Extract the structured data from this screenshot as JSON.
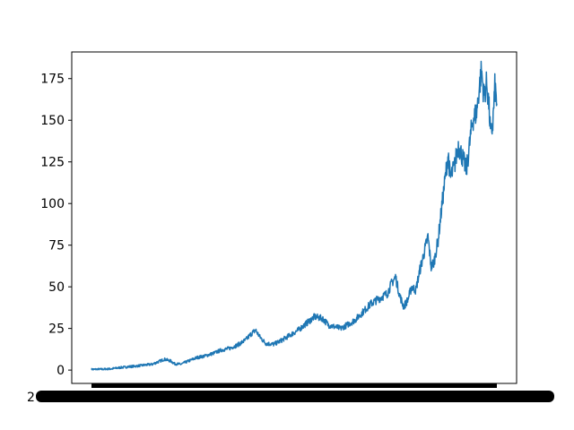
{
  "chart_data": {
    "type": "line",
    "title": "",
    "xlabel": "",
    "ylabel": "",
    "ylim": [
      -8,
      191
    ],
    "yticks": [
      0,
      25,
      50,
      75,
      100,
      125,
      150,
      175
    ],
    "ytick_labels": [
      "0",
      "25",
      "50",
      "75",
      "100",
      "125",
      "150",
      "175"
    ],
    "x_tick_labels": "overlapping, illegible (one label per data point)",
    "grid": false,
    "legend": "none",
    "series": [
      {
        "color": "#1f77b4",
        "x_index_range": [
          0,
          100
        ],
        "points": [
          [
            0,
            0.4
          ],
          [
            3,
            0.5
          ],
          [
            5,
            0.8
          ],
          [
            7,
            1.5
          ],
          [
            9,
            2.0
          ],
          [
            11,
            2.4
          ],
          [
            13,
            3.0
          ],
          [
            15,
            3.5
          ],
          [
            16.5,
            5.0
          ],
          [
            18,
            6.5
          ],
          [
            19.5,
            5.5
          ],
          [
            20.5,
            3.8
          ],
          [
            22,
            3.5
          ],
          [
            24,
            5.5
          ],
          [
            26,
            7.5
          ],
          [
            28,
            8.5
          ],
          [
            30,
            10.0
          ],
          [
            32,
            12.0
          ],
          [
            34,
            13.0
          ],
          [
            36,
            15.0
          ],
          [
            38,
            18.0
          ],
          [
            39.5,
            22.0
          ],
          [
            40.5,
            24.0
          ],
          [
            41.5,
            20.0
          ],
          [
            43,
            16.0
          ],
          [
            45,
            15.5
          ],
          [
            47,
            18.0
          ],
          [
            49,
            21.0
          ],
          [
            51,
            24.0
          ],
          [
            53,
            28.0
          ],
          [
            55,
            32.0
          ],
          [
            57,
            31.0
          ],
          [
            58.5,
            27.0
          ],
          [
            60,
            26.0
          ],
          [
            61.5,
            25.0
          ],
          [
            63,
            27.0
          ],
          [
            65,
            30.0
          ],
          [
            67,
            35.0
          ],
          [
            69,
            40.0
          ],
          [
            71,
            43.0
          ],
          [
            73,
            46.0
          ],
          [
            74,
            52.0
          ],
          [
            75,
            56.0
          ],
          [
            76,
            45.0
          ],
          [
            77,
            38.0
          ],
          [
            78,
            42.0
          ],
          [
            79,
            50.0
          ],
          [
            80,
            48.0
          ],
          [
            81,
            60.0
          ],
          [
            82,
            70.0
          ],
          [
            83,
            80.0
          ],
          [
            83.8,
            62.0
          ],
          [
            84.5,
            65.0
          ],
          [
            85.5,
            78.0
          ],
          [
            86.5,
            100.0
          ],
          [
            87.5,
            120.0
          ],
          [
            88,
            130.0
          ],
          [
            88.5,
            115.0
          ],
          [
            89.5,
            122.0
          ],
          [
            90.5,
            135.0
          ],
          [
            91.5,
            128.0
          ],
          [
            92.5,
            120.0
          ],
          [
            93,
            130.0
          ],
          [
            94,
            150.0
          ],
          [
            95,
            155.0
          ],
          [
            95.7,
            170.0
          ],
          [
            96.2,
            180.0
          ],
          [
            96.8,
            165.0
          ],
          [
            97.5,
            172.0
          ],
          [
            98,
            160.0
          ],
          [
            98.5,
            140.0
          ],
          [
            99,
            148.0
          ],
          [
            99.5,
            170.0
          ],
          [
            100,
            160.0
          ]
        ]
      }
    ]
  }
}
